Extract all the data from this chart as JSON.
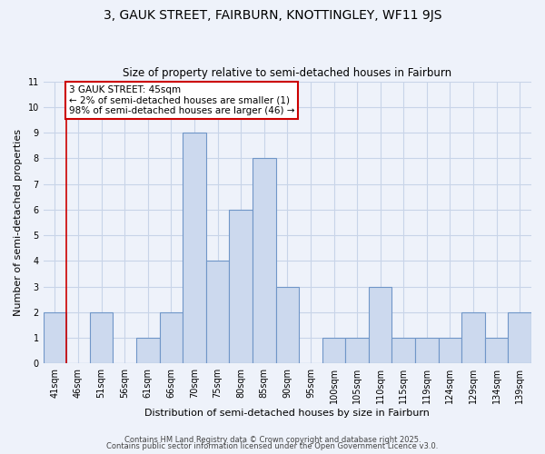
{
  "title1": "3, GAUK STREET, FAIRBURN, KNOTTINGLEY, WF11 9JS",
  "title2": "Size of property relative to semi-detached houses in Fairburn",
  "xlabel": "Distribution of semi-detached houses by size in Fairburn",
  "ylabel": "Number of semi-detached properties",
  "categories": [
    "41sqm",
    "46sqm",
    "51sqm",
    "56sqm",
    "61sqm",
    "66sqm",
    "70sqm",
    "75sqm",
    "80sqm",
    "85sqm",
    "90sqm",
    "95sqm",
    "100sqm",
    "105sqm",
    "110sqm",
    "115sqm",
    "119sqm",
    "124sqm",
    "129sqm",
    "134sqm",
    "139sqm"
  ],
  "values": [
    2,
    0,
    2,
    0,
    1,
    2,
    9,
    4,
    6,
    8,
    3,
    0,
    1,
    1,
    3,
    1,
    1,
    1,
    2,
    1,
    2
  ],
  "bar_color": "#ccd9ee",
  "bar_edge_color": "#7096c8",
  "annotation_text_line1": "3 GAUK STREET: 45sqm",
  "annotation_text_line2": "← 2% of semi-detached houses are smaller (1)",
  "annotation_text_line3": "98% of semi-detached houses are larger (46) →",
  "annotation_box_facecolor": "#ffffff",
  "annotation_box_edgecolor": "#cc0000",
  "red_line_color": "#cc0000",
  "ylim": [
    0,
    11
  ],
  "yticks": [
    0,
    1,
    2,
    3,
    4,
    5,
    6,
    7,
    8,
    9,
    10,
    11
  ],
  "grid_color": "#c8d4e8",
  "bg_color": "#eef2fa",
  "plot_bg_color": "#eef2fa",
  "footer1": "Contains HM Land Registry data © Crown copyright and database right 2025.",
  "footer2": "Contains public sector information licensed under the Open Government Licence v3.0.",
  "title1_fontsize": 10,
  "title2_fontsize": 8.5,
  "xlabel_fontsize": 8,
  "ylabel_fontsize": 8,
  "tick_fontsize": 7,
  "ann_fontsize": 7.5,
  "footer_fontsize": 6
}
